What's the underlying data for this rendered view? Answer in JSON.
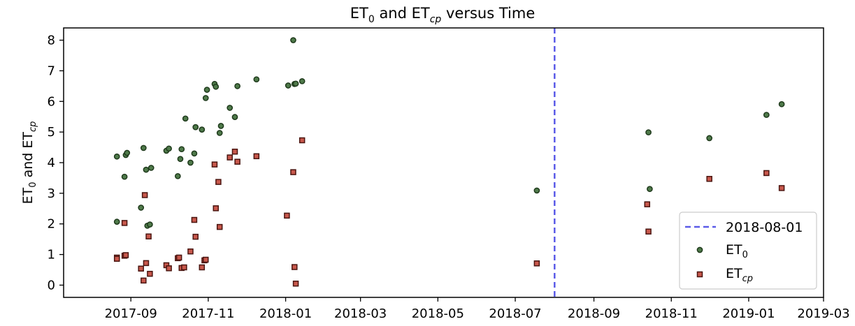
{
  "chart_data": {
    "type": "scatter",
    "title": "ET₀ and ETᶜᵖ versus Time",
    "title_parts": {
      "a": "ET",
      "a_sub": "0",
      "mid": " and ET",
      "b_sub": "cp",
      "tail": " versus Time"
    },
    "ylabel_parts": {
      "a": "ET",
      "a_sub": "0",
      "mid": " and ET",
      "b_sub": "cp"
    },
    "x_type": "date",
    "xlim": [
      "2017-07-10",
      "2019-03-01"
    ],
    "ylim": [
      -0.4,
      8.4
    ],
    "x_ticks": [
      "2017-09-01",
      "2017-11-01",
      "2018-01-01",
      "2018-03-01",
      "2018-05-01",
      "2018-07-01",
      "2018-09-01",
      "2018-11-01",
      "2019-01-01",
      "2019-03-01"
    ],
    "x_tick_labels": [
      "2017-09",
      "2017-11",
      "2018-01",
      "2018-03",
      "2018-05",
      "2018-07",
      "2018-09",
      "2018-11",
      "2019-01",
      "2019-03"
    ],
    "y_ticks": [
      0,
      1,
      2,
      3,
      4,
      5,
      6,
      7,
      8
    ],
    "y_tick_labels": [
      "0",
      "1",
      "2",
      "3",
      "4",
      "5",
      "6",
      "7",
      "8"
    ],
    "grid": false,
    "legend_position": "bottom-right",
    "vline": {
      "date": "2018-08-01",
      "label": "2018-08-01",
      "color": "#5b5be8"
    },
    "series": [
      {
        "name": "ET₀",
        "name_parts": {
          "a": "ET",
          "sub": "0"
        },
        "marker": "circle",
        "fill": "#4f7a4a",
        "stroke": "#1f3a1c",
        "points": [
          [
            "2017-08-21",
            4.2
          ],
          [
            "2017-08-21",
            2.07
          ],
          [
            "2017-08-27",
            3.54
          ],
          [
            "2017-08-28",
            4.25
          ],
          [
            "2017-08-29",
            4.32
          ],
          [
            "2017-09-09",
            2.53
          ],
          [
            "2017-09-11",
            4.48
          ],
          [
            "2017-09-13",
            3.77
          ],
          [
            "2017-09-14",
            1.94
          ],
          [
            "2017-09-16",
            1.98
          ],
          [
            "2017-09-17",
            3.83
          ],
          [
            "2017-09-29",
            4.39
          ],
          [
            "2017-10-01",
            4.46
          ],
          [
            "2017-10-08",
            3.56
          ],
          [
            "2017-10-10",
            4.12
          ],
          [
            "2017-10-11",
            4.44
          ],
          [
            "2017-10-14",
            5.44
          ],
          [
            "2017-10-18",
            4.0
          ],
          [
            "2017-10-21",
            4.3
          ],
          [
            "2017-10-22",
            5.16
          ],
          [
            "2017-10-27",
            5.08
          ],
          [
            "2017-10-30",
            6.11
          ],
          [
            "2017-10-31",
            6.38
          ],
          [
            "2017-11-06",
            6.57
          ],
          [
            "2017-11-07",
            6.48
          ],
          [
            "2017-11-10",
            4.97
          ],
          [
            "2017-11-11",
            5.2
          ],
          [
            "2017-11-18",
            5.79
          ],
          [
            "2017-11-22",
            5.49
          ],
          [
            "2017-11-24",
            6.5
          ],
          [
            "2017-12-09",
            6.72
          ],
          [
            "2018-01-03",
            6.52
          ],
          [
            "2018-01-07",
            8.0
          ],
          [
            "2018-01-08",
            6.57
          ],
          [
            "2018-01-09",
            6.58
          ],
          [
            "2018-01-14",
            6.66
          ],
          [
            "2018-07-18",
            3.09
          ],
          [
            "2018-10-14",
            4.99
          ],
          [
            "2018-10-15",
            3.14
          ],
          [
            "2018-12-01",
            4.8
          ],
          [
            "2019-01-15",
            5.56
          ],
          [
            "2019-01-27",
            5.91
          ]
        ]
      },
      {
        "name": "ETᶜᵖ",
        "name_parts": {
          "a": "ET",
          "sub": "cp"
        },
        "marker": "square",
        "fill": "#c8584c",
        "stroke": "#4a1510",
        "points": [
          [
            "2017-08-21",
            0.9
          ],
          [
            "2017-08-21",
            0.86
          ],
          [
            "2017-08-27",
            0.96
          ],
          [
            "2017-08-27",
            2.03
          ],
          [
            "2017-08-28",
            0.98
          ],
          [
            "2017-09-09",
            0.54
          ],
          [
            "2017-09-11",
            0.15
          ],
          [
            "2017-09-12",
            2.94
          ],
          [
            "2017-09-13",
            0.72
          ],
          [
            "2017-09-15",
            1.59
          ],
          [
            "2017-09-16",
            0.37
          ],
          [
            "2017-09-29",
            0.65
          ],
          [
            "2017-10-01",
            0.55
          ],
          [
            "2017-10-08",
            0.88
          ],
          [
            "2017-10-09",
            0.9
          ],
          [
            "2017-10-11",
            0.56
          ],
          [
            "2017-10-13",
            0.58
          ],
          [
            "2017-10-18",
            1.1
          ],
          [
            "2017-10-21",
            2.13
          ],
          [
            "2017-10-22",
            1.58
          ],
          [
            "2017-10-27",
            0.58
          ],
          [
            "2017-10-29",
            0.81
          ],
          [
            "2017-10-30",
            0.83
          ],
          [
            "2017-11-06",
            3.94
          ],
          [
            "2017-11-07",
            2.51
          ],
          [
            "2017-11-09",
            3.37
          ],
          [
            "2017-11-10",
            1.9
          ],
          [
            "2017-11-18",
            4.17
          ],
          [
            "2017-11-22",
            4.36
          ],
          [
            "2017-11-24",
            4.03
          ],
          [
            "2017-12-09",
            4.21
          ],
          [
            "2018-01-02",
            2.27
          ],
          [
            "2018-01-07",
            3.69
          ],
          [
            "2018-01-08",
            0.59
          ],
          [
            "2018-01-09",
            0.05
          ],
          [
            "2018-01-14",
            4.73
          ],
          [
            "2018-07-18",
            0.71
          ],
          [
            "2018-10-13",
            2.64
          ],
          [
            "2018-10-14",
            1.75
          ],
          [
            "2018-12-01",
            3.47
          ],
          [
            "2019-01-15",
            3.66
          ],
          [
            "2019-01-27",
            3.17
          ]
        ]
      }
    ]
  }
}
